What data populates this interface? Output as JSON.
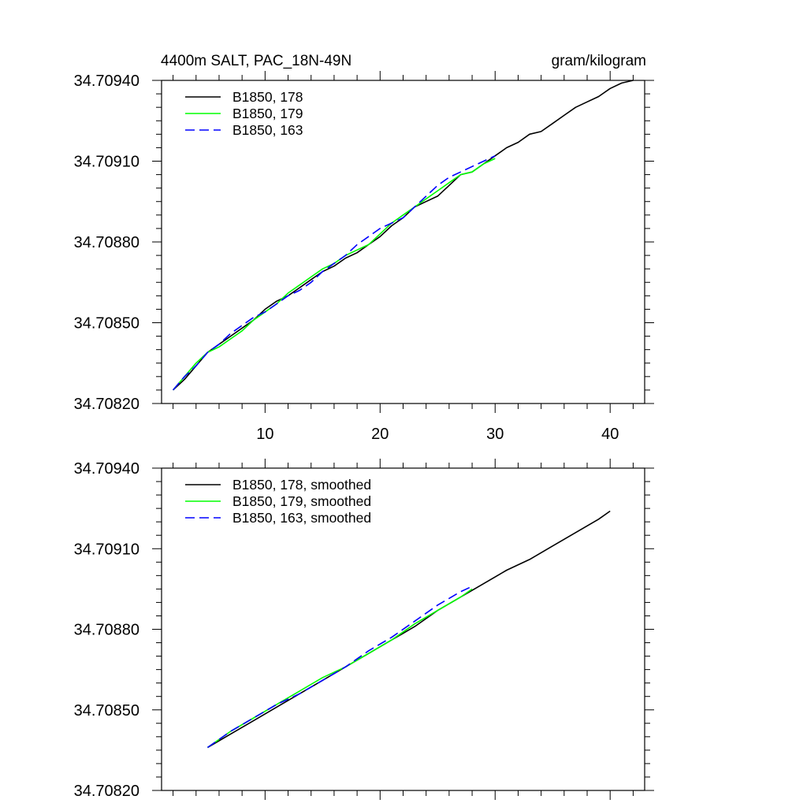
{
  "chart_data": [
    {
      "type": "line",
      "title": "4400m SALT, PAC_18N-49N",
      "units": "gram/kilogram",
      "xlabel": "",
      "ylabel": "",
      "xlim": [
        1,
        43
      ],
      "ylim": [
        34.7082,
        34.7094
      ],
      "x_ticks": [
        10,
        20,
        30,
        40
      ],
      "x_tick_labels": [
        "10",
        "20",
        "30",
        "40"
      ],
      "y_ticks": [
        34.7082,
        34.7085,
        34.7088,
        34.7091,
        34.7094
      ],
      "y_tick_labels": [
        "34.70820",
        "34.70850",
        "34.70880",
        "34.70910",
        "34.70940"
      ],
      "grid": false,
      "legend_position": "top-left",
      "series": [
        {
          "name": "B1850, 178",
          "color": "#000000",
          "dash": "solid",
          "x": [
            2,
            3,
            4,
            5,
            6,
            7,
            8,
            9,
            10,
            11,
            12,
            13,
            14,
            15,
            16,
            17,
            18,
            19,
            20,
            21,
            22,
            23,
            24,
            25,
            26,
            27,
            28,
            29,
            30,
            31,
            32,
            33,
            34,
            35,
            36,
            37,
            38,
            39,
            40,
            41,
            42
          ],
          "y": [
            34.70825,
            34.70829,
            34.70834,
            34.70839,
            34.70842,
            34.70845,
            34.70848,
            34.70851,
            34.70855,
            34.70858,
            34.7086,
            34.70863,
            34.70866,
            34.70869,
            34.70871,
            34.70874,
            34.70876,
            34.70879,
            34.70882,
            34.70886,
            34.70889,
            34.70893,
            34.70895,
            34.70897,
            34.70901,
            34.70905,
            34.70906,
            34.70909,
            34.70912,
            34.70915,
            34.70917,
            34.7092,
            34.70921,
            34.70924,
            34.70927,
            34.7093,
            34.70932,
            34.70934,
            34.70937,
            34.70939,
            34.7094
          ]
        },
        {
          "name": "B1850, 179",
          "color": "#00ff00",
          "dash": "solid",
          "x": [
            2,
            3,
            4,
            5,
            6,
            7,
            8,
            9,
            10,
            11,
            12,
            13,
            14,
            15,
            16,
            17,
            18,
            19,
            20,
            21,
            22,
            23,
            24,
            25,
            26,
            27,
            28,
            29,
            30
          ],
          "y": [
            34.70825,
            34.7083,
            34.70835,
            34.70839,
            34.70841,
            34.70844,
            34.70847,
            34.70851,
            34.70854,
            34.70857,
            34.70861,
            34.70864,
            34.70867,
            34.7087,
            34.70872,
            34.70875,
            34.70877,
            34.70879,
            34.70883,
            34.70887,
            34.7089,
            34.70893,
            34.70896,
            34.70899,
            34.70902,
            34.70905,
            34.70906,
            34.70909,
            34.70911
          ]
        },
        {
          "name": "B1850, 163",
          "color": "#0000ff",
          "dash": "dashed",
          "x": [
            2,
            3,
            4,
            5,
            6,
            7,
            8,
            9,
            10,
            11,
            12,
            13,
            14,
            15,
            16,
            17,
            18,
            19,
            20,
            21,
            22,
            23,
            24,
            25,
            26,
            27,
            28,
            29,
            30
          ],
          "y": [
            34.70825,
            34.7083,
            34.70834,
            34.70839,
            34.70842,
            34.70846,
            34.70849,
            34.70852,
            34.70854,
            34.70857,
            34.7086,
            34.70862,
            34.70865,
            34.70869,
            34.70872,
            34.70875,
            34.70879,
            34.70882,
            34.70885,
            34.70887,
            34.70889,
            34.70893,
            34.70897,
            34.70901,
            34.70904,
            34.70906,
            34.70908,
            34.7091,
            34.70912
          ]
        }
      ]
    },
    {
      "type": "line",
      "title": "",
      "xlabel": "",
      "ylabel": "",
      "xlim": [
        1,
        43
      ],
      "ylim": [
        34.7082,
        34.7094
      ],
      "x_ticks": [
        10,
        20,
        30,
        40
      ],
      "y_ticks": [
        34.7082,
        34.7085,
        34.7088,
        34.7091,
        34.7094
      ],
      "y_tick_labels": [
        "34.70820",
        "34.70850",
        "34.70880",
        "34.70910",
        "34.70940"
      ],
      "grid": false,
      "legend_position": "top-left",
      "series": [
        {
          "name": "B1850, 178, smoothed",
          "color": "#000000",
          "dash": "solid",
          "x": [
            5,
            7,
            9,
            11,
            13,
            15,
            17,
            19,
            21,
            23,
            25,
            27,
            29,
            31,
            33,
            35,
            37,
            39,
            40
          ],
          "y": [
            34.70836,
            34.70841,
            34.70846,
            34.70851,
            34.70856,
            34.70861,
            34.70866,
            34.70871,
            34.70876,
            34.70881,
            34.70887,
            34.70892,
            34.70897,
            34.70902,
            34.70906,
            34.70911,
            34.70916,
            34.70921,
            34.70924
          ]
        },
        {
          "name": "B1850, 179, smoothed",
          "color": "#00ff00",
          "dash": "solid",
          "x": [
            5,
            7,
            9,
            11,
            13,
            15,
            17,
            19,
            21,
            23,
            25,
            27,
            28
          ],
          "y": [
            34.70836,
            34.70842,
            34.70847,
            34.70852,
            34.70857,
            34.70862,
            34.70866,
            34.70871,
            34.70876,
            34.70882,
            34.70887,
            34.70892,
            34.70895
          ]
        },
        {
          "name": "B1850, 163, smoothed",
          "color": "#0000ff",
          "dash": "dashed",
          "x": [
            5,
            7,
            9,
            11,
            13,
            15,
            17,
            19,
            21,
            23,
            25,
            27,
            28
          ],
          "y": [
            34.70836,
            34.70842,
            34.70847,
            34.70852,
            34.70856,
            34.70861,
            34.70866,
            34.70872,
            34.70877,
            34.70883,
            34.70889,
            34.70894,
            34.70896
          ]
        }
      ]
    }
  ]
}
